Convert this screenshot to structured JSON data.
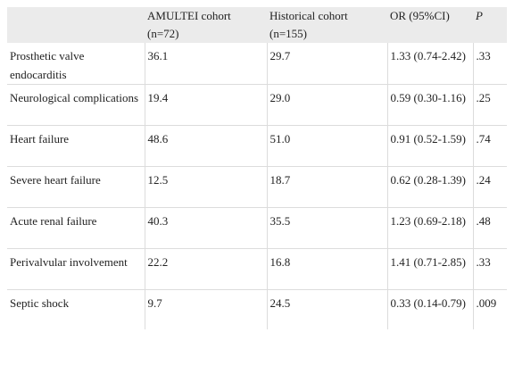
{
  "table": {
    "headers": [
      "",
      "AMULTEI cohort (n=72)",
      "Historical cohort (n=155)",
      "OR (95%CI)",
      "P"
    ],
    "rows": [
      {
        "label": "Prosthetic valve endocarditis",
        "amultei": "36.1",
        "historical": "29.7",
        "or_ci": "1.33 (0.74-2.42)",
        "p": ".33"
      },
      {
        "label": "Neurological complications",
        "amultei": "19.4",
        "historical": "29.0",
        "or_ci": "0.59 (0.30-1.16)",
        "p": ".25"
      },
      {
        "label": "Heart failure",
        "amultei": "48.6",
        "historical": "51.0",
        "or_ci": "0.91 (0.52-1.59)",
        "p": ".74"
      },
      {
        "label": "Severe heart failure",
        "amultei": "12.5",
        "historical": "18.7",
        "or_ci": "0.62 (0.28-1.39)",
        "p": ".24"
      },
      {
        "label": "Acute renal failure",
        "amultei": "40.3",
        "historical": "35.5",
        "or_ci": "1.23 (0.69-2.18)",
        "p": ".48"
      },
      {
        "label": "Perivalvular involvement",
        "amultei": "22.2",
        "historical": "16.8",
        "or_ci": "1.41 (0.71-2.85)",
        "p": ".33"
      },
      {
        "label": "Septic shock",
        "amultei": "9.7",
        "historical": "24.5",
        "or_ci": "0.33 (0.14-0.79)",
        "p": ".009"
      }
    ]
  }
}
